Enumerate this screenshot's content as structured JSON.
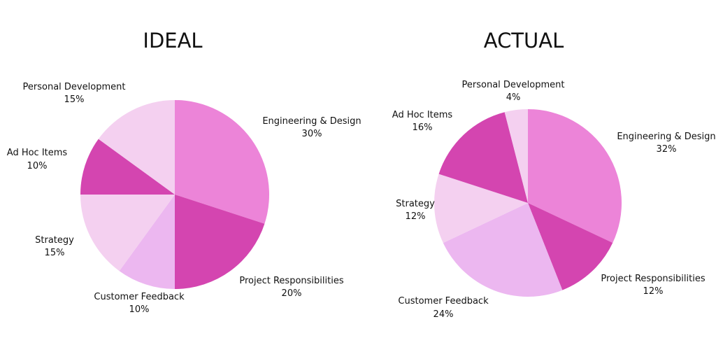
{
  "chart_data": [
    {
      "type": "pie",
      "title": "IDEAL",
      "start": "12 o'clock",
      "direction": "clockwise",
      "categories": [
        "Engineering & Design",
        "Project Responsibilities",
        "Customer Feedback",
        "Strategy",
        "Ad Hoc Items",
        "Personal Development"
      ],
      "values": [
        30,
        20,
        10,
        15,
        10,
        15
      ],
      "labels": [
        "30%",
        "20%",
        "10%",
        "15%",
        "10%",
        "15%"
      ],
      "colors": [
        "#ec84d8",
        "#d445b0",
        "#ecb7f0",
        "#f4d0f0",
        "#d445b0",
        "#f4d0f0"
      ]
    },
    {
      "type": "pie",
      "title": "ACTUAL",
      "start": "12 o'clock",
      "direction": "clockwise",
      "categories": [
        "Engineering & Design",
        "Project Responsibilities",
        "Customer Feedback",
        "Strategy",
        "Ad Hoc Items",
        "Personal Development"
      ],
      "values": [
        32,
        12,
        24,
        12,
        16,
        4
      ],
      "labels": [
        "32%",
        "12%",
        "24%",
        "12%",
        "16%",
        "4%"
      ],
      "colors": [
        "#ec84d8",
        "#d445b0",
        "#ecb7f0",
        "#f4d0f0",
        "#d445b0",
        "#f4d0f0"
      ]
    }
  ]
}
